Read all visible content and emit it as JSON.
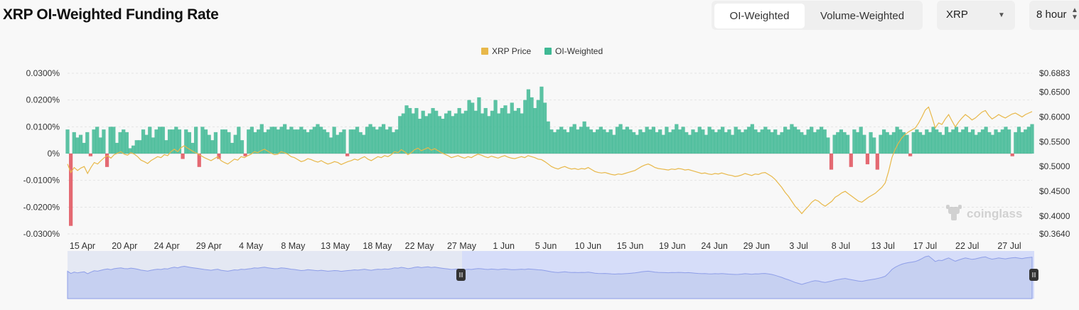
{
  "header": {
    "title": "XRP OI-Weighted Funding Rate",
    "tabs": [
      {
        "label": "OI-Weighted",
        "active": true
      },
      {
        "label": "Volume-Weighted",
        "active": false
      }
    ],
    "coin_select": "XRP",
    "interval_select": "8 hour"
  },
  "watermark": "coinglass",
  "colors": {
    "price": "#e8b84a",
    "positive": "#3fb994",
    "negative": "#e0505a",
    "navigator": "#8e9ee8"
  },
  "chart_data": {
    "type": "area",
    "legend": [
      "XRP Price",
      "OI-Weighted"
    ],
    "legend_position": "top-center",
    "x_tick_labels": [
      "15 Apr",
      "20 Apr",
      "24 Apr",
      "29 Apr",
      "4 May",
      "8 May",
      "13 May",
      "18 May",
      "22 May",
      "27 May",
      "1 Jun",
      "5 Jun",
      "10 Jun",
      "15 Jun",
      "19 Jun",
      "24 Jun",
      "29 Jun",
      "3 Jul",
      "8 Jul",
      "13 Jul",
      "17 Jul",
      "22 Jul",
      "27 Jul"
    ],
    "y_left_tick_labels": [
      "0.0300%",
      "0.0200%",
      "0.0100%",
      "0%",
      "-0.0100%",
      "-0.0200%",
      "-0.0300%"
    ],
    "y_left_range": [
      -0.03,
      0.03
    ],
    "y_right_tick_labels": [
      "$0.6883",
      "$0.6500",
      "$0.6000",
      "$0.5500",
      "$0.5000",
      "$0.4500",
      "$0.4000",
      "$0.3640"
    ],
    "y_right_range": [
      0.364,
      0.6883
    ],
    "grid": true,
    "series": [
      {
        "name": "OI-Weighted",
        "unit": "%",
        "values": [
          0.009,
          -0.027,
          0.008,
          0.006,
          0.007,
          0.004,
          0.008,
          -0.001,
          0.009,
          0.01,
          0.006,
          0.009,
          -0.005,
          0.01,
          0.01,
          0.004,
          0.008,
          0.009,
          0.008,
          0.002,
          0.003,
          0.005,
          0.005,
          0.009,
          0.007,
          0.01,
          0.006,
          0.009,
          0.01,
          0.01,
          0.005,
          0.009,
          0.009,
          0.01,
          0.009,
          -0.002,
          0.009,
          0.008,
          0.004,
          0.01,
          -0.005,
          0.01,
          0.009,
          0.007,
          0.005,
          0.008,
          -0.002,
          0.009,
          0.009,
          0.008,
          0.004,
          0.007,
          0.01,
          0.005,
          -0.001,
          0.009,
          0.01,
          0.008,
          0.009,
          0.011,
          0.008,
          0.009,
          0.01,
          0.01,
          0.009,
          0.01,
          0.011,
          0.009,
          0.01,
          0.009,
          0.009,
          0.01,
          0.009,
          0.008,
          0.009,
          0.01,
          0.011,
          0.01,
          0.009,
          0.008,
          0.006,
          0.01,
          0.007,
          0.008,
          0.009,
          -0.001,
          0.009,
          0.009,
          0.01,
          0.008,
          0.007,
          0.01,
          0.011,
          0.01,
          0.009,
          0.01,
          0.011,
          0.009,
          0.01,
          0.008,
          0.009,
          0.014,
          0.015,
          0.018,
          0.017,
          0.015,
          0.017,
          0.013,
          0.016,
          0.014,
          0.015,
          0.017,
          0.016,
          0.014,
          0.013,
          0.015,
          0.016,
          0.014,
          0.015,
          0.017,
          0.015,
          0.016,
          0.02,
          0.019,
          0.016,
          0.021,
          0.015,
          0.017,
          0.014,
          0.016,
          0.02,
          0.015,
          0.017,
          0.018,
          0.015,
          0.019,
          0.016,
          0.017,
          0.015,
          0.02,
          0.024,
          0.021,
          0.017,
          0.02,
          0.025,
          0.019,
          0.012,
          0.009,
          0.008,
          0.009,
          0.01,
          0.009,
          0.008,
          0.01,
          0.011,
          0.009,
          0.01,
          0.012,
          0.01,
          0.009,
          0.008,
          0.009,
          0.01,
          0.009,
          0.008,
          0.009,
          0.007,
          0.01,
          0.011,
          0.009,
          0.01,
          0.009,
          0.008,
          0.007,
          0.009,
          0.008,
          0.01,
          0.009,
          0.01,
          0.008,
          0.009,
          0.007,
          0.01,
          0.008,
          0.009,
          0.011,
          0.009,
          0.01,
          0.008,
          0.007,
          0.009,
          0.008,
          0.01,
          0.009,
          0.007,
          0.01,
          0.009,
          0.008,
          0.009,
          0.01,
          0.008,
          0.009,
          0.007,
          0.01,
          0.009,
          0.008,
          0.009,
          0.01,
          0.011,
          0.009,
          0.008,
          0.009,
          0.01,
          0.009,
          0.008,
          0.009,
          0.007,
          0.008,
          0.01,
          0.009,
          0.011,
          0.01,
          0.009,
          0.008,
          0.007,
          0.009,
          0.01,
          0.008,
          0.009,
          0.01,
          0.009,
          0.006,
          -0.006,
          0.007,
          0.008,
          0.009,
          0.008,
          0.007,
          -0.005,
          0.009,
          0.008,
          0.01,
          0.007,
          -0.004,
          0.008,
          0.006,
          -0.006,
          0.007,
          0.009,
          0.008,
          0.007,
          0.008,
          0.01,
          0.009,
          0.008,
          0.007,
          -0.001,
          0.008,
          0.009,
          0.008,
          0.007,
          0.009,
          0.008,
          0.01,
          0.009,
          0.008,
          0.007,
          0.01,
          0.008,
          0.009,
          0.01,
          0.008,
          0.009,
          0.01,
          0.008,
          0.009,
          0.007,
          0.008,
          0.009,
          0.01,
          0.008,
          0.007,
          0.009,
          0.008,
          0.009,
          0.01,
          0.009,
          -0.001,
          0.008,
          0.01,
          0.008,
          0.009,
          0.01,
          0.011
        ]
      },
      {
        "name": "XRP Price",
        "unit": "$",
        "values": [
          0.505,
          0.488,
          0.498,
          0.492,
          0.497,
          0.5,
          0.486,
          0.498,
          0.508,
          0.505,
          0.512,
          0.518,
          0.522,
          0.517,
          0.524,
          0.527,
          0.53,
          0.525,
          0.523,
          0.528,
          0.525,
          0.52,
          0.513,
          0.51,
          0.506,
          0.512,
          0.516,
          0.52,
          0.518,
          0.524,
          0.522,
          0.53,
          0.535,
          0.53,
          0.538,
          0.542,
          0.537,
          0.533,
          0.529,
          0.526,
          0.522,
          0.518,
          0.515,
          0.512,
          0.516,
          0.52,
          0.512,
          0.508,
          0.505,
          0.51,
          0.515,
          0.513,
          0.52,
          0.518,
          0.522,
          0.525,
          0.53,
          0.528,
          0.532,
          0.535,
          0.531,
          0.527,
          0.524,
          0.525,
          0.53,
          0.528,
          0.525,
          0.52,
          0.518,
          0.514,
          0.51,
          0.512,
          0.516,
          0.514,
          0.511,
          0.509,
          0.512,
          0.508,
          0.505,
          0.507,
          0.51,
          0.508,
          0.504,
          0.507,
          0.51,
          0.512,
          0.515,
          0.513,
          0.517,
          0.52,
          0.515,
          0.512,
          0.516,
          0.52,
          0.518,
          0.522,
          0.52,
          0.524,
          0.53,
          0.528,
          0.534,
          0.53,
          0.524,
          0.528,
          0.534,
          0.537,
          0.532,
          0.535,
          0.538,
          0.533,
          0.536,
          0.532,
          0.528,
          0.525,
          0.522,
          0.518,
          0.52,
          0.522,
          0.519,
          0.517,
          0.52,
          0.518,
          0.522,
          0.525,
          0.523,
          0.52,
          0.518,
          0.521,
          0.519,
          0.517,
          0.52,
          0.522,
          0.519,
          0.517,
          0.516,
          0.518,
          0.52,
          0.518,
          0.522,
          0.52,
          0.518,
          0.515,
          0.514,
          0.51,
          0.505,
          0.5,
          0.497,
          0.495,
          0.498,
          0.5,
          0.497,
          0.495,
          0.496,
          0.494,
          0.496,
          0.495,
          0.498,
          0.494,
          0.49,
          0.488,
          0.487,
          0.488,
          0.486,
          0.484,
          0.483,
          0.485,
          0.484,
          0.486,
          0.488,
          0.49,
          0.492,
          0.496,
          0.5,
          0.503,
          0.505,
          0.502,
          0.498,
          0.496,
          0.495,
          0.494,
          0.493,
          0.495,
          0.494,
          0.496,
          0.495,
          0.493,
          0.494,
          0.492,
          0.49,
          0.488,
          0.486,
          0.487,
          0.485,
          0.484,
          0.486,
          0.485,
          0.487,
          0.485,
          0.483,
          0.482,
          0.48,
          0.481,
          0.483,
          0.486,
          0.484,
          0.482,
          0.485,
          0.484,
          0.487,
          0.488,
          0.484,
          0.48,
          0.474,
          0.466,
          0.458,
          0.448,
          0.44,
          0.43,
          0.42,
          0.413,
          0.405,
          0.413,
          0.42,
          0.428,
          0.433,
          0.43,
          0.424,
          0.42,
          0.425,
          0.43,
          0.438,
          0.442,
          0.447,
          0.45,
          0.445,
          0.44,
          0.435,
          0.43,
          0.428,
          0.433,
          0.438,
          0.442,
          0.446,
          0.452,
          0.458,
          0.467,
          0.49,
          0.518,
          0.535,
          0.548,
          0.558,
          0.565,
          0.57,
          0.574,
          0.578,
          0.588,
          0.6,
          0.614,
          0.62,
          0.6,
          0.578,
          0.588,
          0.585,
          0.596,
          0.605,
          0.592,
          0.58,
          0.59,
          0.598,
          0.605,
          0.6,
          0.594,
          0.598,
          0.604,
          0.61,
          0.613,
          0.603,
          0.596,
          0.6,
          0.605,
          0.601,
          0.598,
          0.602,
          0.606,
          0.608,
          0.604,
          0.6,
          0.605,
          0.608,
          0.611
        ]
      }
    ]
  }
}
